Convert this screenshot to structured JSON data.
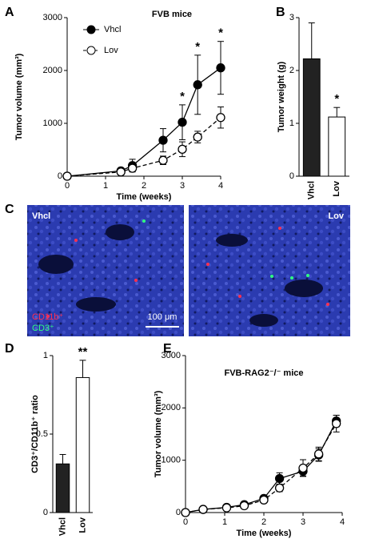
{
  "chart_data": [
    {
      "type": "line",
      "panel": "A",
      "title": "FVB mice",
      "xlabel": "Time (weeks)",
      "ylabel": "Tumor volume (mm³)",
      "x": [
        0,
        1.4,
        1.7,
        2.5,
        3,
        3.4,
        4
      ],
      "xlim": [
        0,
        4
      ],
      "xticks": [
        0,
        1,
        2,
        3,
        4
      ],
      "ylim": [
        0,
        3000
      ],
      "yticks": [
        0,
        1000,
        2000,
        3000
      ],
      "legend": "top-left",
      "series": [
        {
          "name": "Vhcl",
          "color": "#000000",
          "marker": "filled",
          "line_style": "solid",
          "values": [
            0,
            100,
            200,
            680,
            1020,
            1730,
            2050
          ],
          "errors": [
            null,
            50,
            120,
            220,
            330,
            560,
            500
          ]
        },
        {
          "name": "Lov",
          "color": "#000000",
          "marker": "open",
          "line_style": "dashed",
          "values": [
            0,
            80,
            150,
            300,
            510,
            740,
            1110
          ],
          "errors": [
            null,
            30,
            50,
            80,
            140,
            110,
            200
          ]
        }
      ],
      "annotations": [
        {
          "text": "*",
          "x": 3
        },
        {
          "text": "*",
          "x": 3.4
        },
        {
          "text": "*",
          "x": 4
        }
      ]
    },
    {
      "type": "bar",
      "panel": "B",
      "ylabel": "Tumor weight (g)",
      "categories": [
        "Vhcl",
        "Lov"
      ],
      "values": [
        2.22,
        1.12
      ],
      "errors": [
        0.68,
        0.18
      ],
      "colors": [
        "#222222",
        "#ffffff"
      ],
      "ylim": [
        0,
        3
      ],
      "yticks": [
        0,
        1,
        2,
        3
      ],
      "annotations": [
        {
          "text": "*",
          "category": "Lov"
        }
      ]
    },
    {
      "type": "bar",
      "panel": "D",
      "ylabel": "CD3⁺/CD11b⁺ ratio",
      "categories": [
        "Vhcl",
        "Lov"
      ],
      "values": [
        0.31,
        0.86
      ],
      "errors": [
        0.06,
        0.11
      ],
      "colors": [
        "#222222",
        "#ffffff"
      ],
      "ylim": [
        0,
        1
      ],
      "yticks": [
        0,
        0.5,
        1
      ],
      "annotations": [
        {
          "text": "**",
          "category": "Lov"
        }
      ]
    },
    {
      "type": "line",
      "panel": "E",
      "title": "FVB-RAG2⁻/⁻ mice",
      "xlabel": "Time (weeks)",
      "ylabel": "Tumor volume (mm³)",
      "x": [
        0,
        0.45,
        1.05,
        1.5,
        2,
        2.4,
        3,
        3.4,
        3.85
      ],
      "xlim": [
        0,
        4
      ],
      "xticks": [
        0,
        1,
        2,
        3,
        4
      ],
      "ylim": [
        0,
        3000
      ],
      "yticks": [
        0,
        1000,
        2000,
        3000
      ],
      "series": [
        {
          "color": "#000000",
          "marker": "filled",
          "line_style": "solid",
          "values": [
            0,
            60,
            100,
            150,
            270,
            650,
            790,
            1100,
            1750
          ],
          "errors": [
            null,
            20,
            30,
            40,
            60,
            110,
            90,
            120,
            110
          ]
        },
        {
          "color": "#000000",
          "marker": "open",
          "line_style": "dashed",
          "values": [
            0,
            60,
            90,
            130,
            240,
            470,
            850,
            1120,
            1700
          ],
          "errors": [
            null,
            20,
            30,
            40,
            50,
            70,
            160,
            130,
            160
          ]
        }
      ]
    }
  ],
  "micrograph": {
    "panel": "C",
    "left_title": "Vhcl",
    "right_title": "Lov",
    "marker_labels": [
      "CD11b⁺",
      "CD3⁺"
    ],
    "scale_bar": "100 μm"
  }
}
